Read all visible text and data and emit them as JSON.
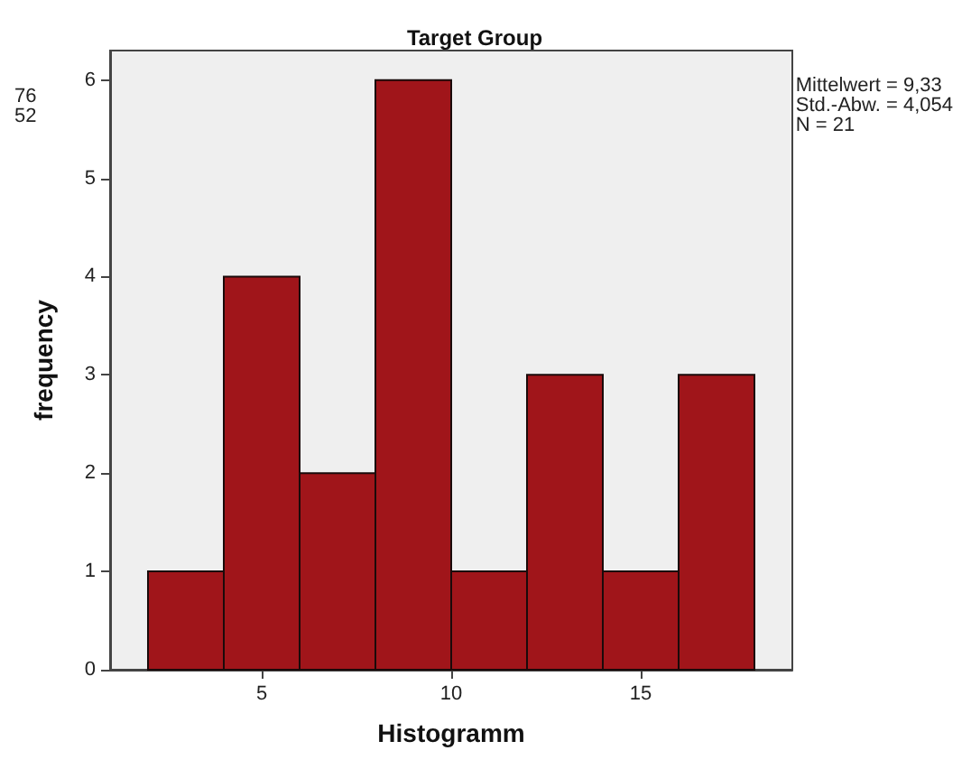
{
  "chart_data": {
    "type": "histogram",
    "title": "Target Group",
    "xlabel": "Histogramm",
    "ylabel": "frequency",
    "bins": [
      2,
      4,
      6,
      8,
      10,
      12,
      14,
      16,
      18
    ],
    "values": [
      1,
      4,
      2,
      6,
      1,
      3,
      1,
      3
    ],
    "color": "#a0151a",
    "xlim": [
      1,
      19
    ],
    "xticks": [
      5,
      10,
      15
    ],
    "ylim": [
      0,
      6.3
    ],
    "yticks": [
      0,
      1,
      2,
      3,
      4,
      5,
      6
    ],
    "grid": false,
    "annotations": [
      "Mittelwert = 9,33\nStd.-Abw. = 4,054\nN = 21",
      "76\n52"
    ]
  }
}
